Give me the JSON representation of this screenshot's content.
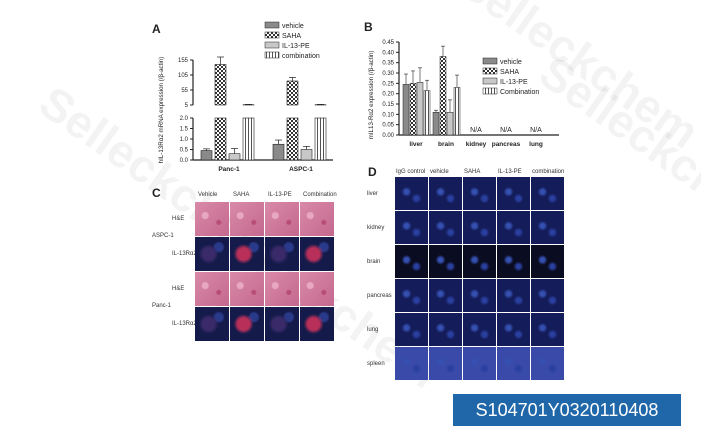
{
  "panels": {
    "a": "A",
    "b": "B",
    "c": "C",
    "d": "D"
  },
  "watermark": "Selleckchem",
  "catalog_id": "S104701Y0320110408",
  "colors": {
    "badge_bg": "#1f67a8",
    "bar_fill": "#888888",
    "he_stain": "#c96a8c",
    "if_stain": "#1a2a6a"
  },
  "chart_data": [
    {
      "type": "bar",
      "ylabel": "hIL-13Rα2 mRNA expression (/β-actin)",
      "categories": [
        "Panc-1",
        "ASPC-1"
      ],
      "series": [
        {
          "name": "vehicle",
          "values": [
            0.45,
            0.75
          ],
          "errors": [
            0.08,
            0.2
          ]
        },
        {
          "name": "SAHA",
          "values": [
            140,
            85
          ],
          "errors": [
            25,
            12
          ]
        },
        {
          "name": "IL-13-PE",
          "values": [
            0.3,
            0.5
          ],
          "errors": [
            0.25,
            0.15
          ]
        },
        {
          "name": "combination",
          "values": [
            6,
            6
          ],
          "errors": [
            1,
            1
          ]
        }
      ],
      "yticks_lower": [
        "0.0",
        "0.5",
        "1.0",
        "1.5",
        "2.0"
      ],
      "yticks_upper": [
        "5",
        "55",
        "105",
        "155"
      ],
      "broken_axis": true
    },
    {
      "type": "bar",
      "ylabel": "mIL13-Rα2 expression (/β-actin)",
      "categories": [
        "liver",
        "brain",
        "kidney",
        "pancreas",
        "lung"
      ],
      "series": [
        {
          "name": "vehicle",
          "values": [
            0.245,
            0.11,
            null,
            null,
            null
          ],
          "errors": [
            0.05,
            0.01,
            null,
            null,
            null
          ]
        },
        {
          "name": "SAHA",
          "values": [
            0.25,
            0.38,
            null,
            null,
            null
          ],
          "errors": [
            0.06,
            0.05,
            null,
            null,
            null
          ]
        },
        {
          "name": "IL-13-PE",
          "values": [
            0.255,
            0.11,
            null,
            null,
            null
          ],
          "errors": [
            0.07,
            0.06,
            null,
            null,
            null
          ]
        },
        {
          "name": "Combination",
          "values": [
            0.215,
            0.23,
            null,
            null,
            null
          ],
          "errors": [
            0.05,
            0.06,
            null,
            null,
            null
          ]
        }
      ],
      "na_label": "N/A",
      "yticks": [
        "0.00",
        "0.05",
        "0.10",
        "0.15",
        "0.20",
        "0.25",
        "0.30",
        "0.35",
        "0.40",
        "0.45"
      ],
      "ylim": [
        0,
        0.45
      ]
    }
  ],
  "panel_c": {
    "columns": [
      "Vehicle",
      "SAHA",
      "IL-13-PE",
      "Combination"
    ],
    "groups": [
      "ASPC-1",
      "Panc-1"
    ],
    "rows": [
      "H&E",
      "IL-13Rα2"
    ]
  },
  "panel_d": {
    "columns": [
      "IgG control",
      "vehicle",
      "SAHA",
      "IL-13-PE",
      "combination"
    ],
    "rows": [
      "liver",
      "kidney",
      "brain",
      "pancreas",
      "lung",
      "spleen"
    ]
  }
}
